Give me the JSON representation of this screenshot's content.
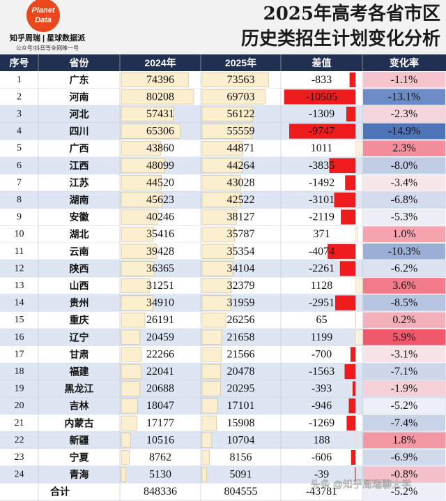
{
  "header": {
    "logo": [
      "Planet",
      "Data"
    ],
    "brand": "知乎周瑞 | 星球数据派",
    "sub": "公众号/抖音等全网唯一号",
    "title": [
      "2025年高考各省市区",
      "历史类招生计划变化分析"
    ]
  },
  "table": {
    "columns": [
      "序号",
      "省份",
      "2024年",
      "2025年",
      "差值",
      "变化率"
    ],
    "rows": [
      [
        1,
        "广东",
        74396,
        73563,
        -833,
        {
          "value": -1.1,
          "label": "-1.1%"
        }
      ],
      [
        2,
        "河南",
        80208,
        69703,
        -10505,
        {
          "value": -13.1,
          "label": "-13.1%"
        }
      ],
      [
        3,
        "河北",
        57431,
        56122,
        -1309,
        {
          "value": -2.3,
          "label": "-2.3%"
        }
      ],
      [
        4,
        "四川",
        65306,
        55559,
        -9747,
        {
          "value": -14.9,
          "label": "-14.9%"
        }
      ],
      [
        5,
        "广西",
        43860,
        44871,
        1011,
        {
          "value": 2.3,
          "label": "2.3%"
        }
      ],
      [
        6,
        "江西",
        48099,
        44264,
        -3835,
        {
          "value": -8.0,
          "label": "-8.0%"
        }
      ],
      [
        7,
        "江苏",
        44520,
        43028,
        -1492,
        {
          "value": -3.4,
          "label": "-3.4%"
        }
      ],
      [
        8,
        "湖南",
        45623,
        42522,
        -3101,
        {
          "value": -6.8,
          "label": "-6.8%"
        }
      ],
      [
        9,
        "安徽",
        40246,
        38127,
        -2119,
        {
          "value": -5.3,
          "label": "-5.3%"
        }
      ],
      [
        10,
        "湖北",
        35416,
        35787,
        371,
        {
          "value": 1.0,
          "label": "1.0%"
        }
      ],
      [
        11,
        "云南",
        39428,
        35354,
        -4074,
        {
          "value": -10.3,
          "label": "-10.3%"
        }
      ],
      [
        12,
        "陕西",
        36365,
        34104,
        -2261,
        {
          "value": -6.2,
          "label": "-6.2%"
        }
      ],
      [
        13,
        "山西",
        31251,
        32379,
        1128,
        {
          "value": 3.6,
          "label": "3.6%"
        }
      ],
      [
        14,
        "贵州",
        34910,
        31959,
        -2951,
        {
          "value": -8.5,
          "label": "-8.5%"
        }
      ],
      [
        15,
        "重庆",
        26191,
        26256,
        65,
        {
          "value": 0.2,
          "label": "0.2%"
        }
      ],
      [
        16,
        "辽宁",
        20459,
        21658,
        1199,
        {
          "value": 5.9,
          "label": "5.9%"
        }
      ],
      [
        17,
        "甘肃",
        22266,
        21566,
        -700,
        {
          "value": -3.1,
          "label": "-3.1%"
        }
      ],
      [
        18,
        "福建",
        22041,
        20478,
        -1563,
        {
          "value": -7.1,
          "label": "-7.1%"
        }
      ],
      [
        19,
        "黑龙江",
        20688,
        20295,
        -393,
        {
          "value": -1.9,
          "label": "-1.9%"
        }
      ],
      [
        20,
        "吉林",
        18047,
        17101,
        -946,
        {
          "value": -5.2,
          "label": "-5.2%"
        }
      ],
      [
        21,
        "内蒙古",
        17177,
        15908,
        -1269,
        {
          "value": -7.4,
          "label": "-7.4%"
        }
      ],
      [
        22,
        "新疆",
        10516,
        10704,
        188,
        {
          "value": 1.8,
          "label": "1.8%"
        }
      ],
      [
        23,
        "宁夏",
        8762,
        8156,
        -606,
        {
          "value": -6.9,
          "label": "-6.9%"
        }
      ],
      [
        24,
        "青海",
        5130,
        5091,
        -39,
        {
          "value": -0.8,
          "label": "-0.8%"
        }
      ]
    ],
    "total": [
      "合计",
      848336,
      804555,
      -43781,
      {
        "value": -5.2,
        "label": "-5.2%"
      }
    ]
  },
  "watermark": "头条 @知乎周瑞聊大学"
}
